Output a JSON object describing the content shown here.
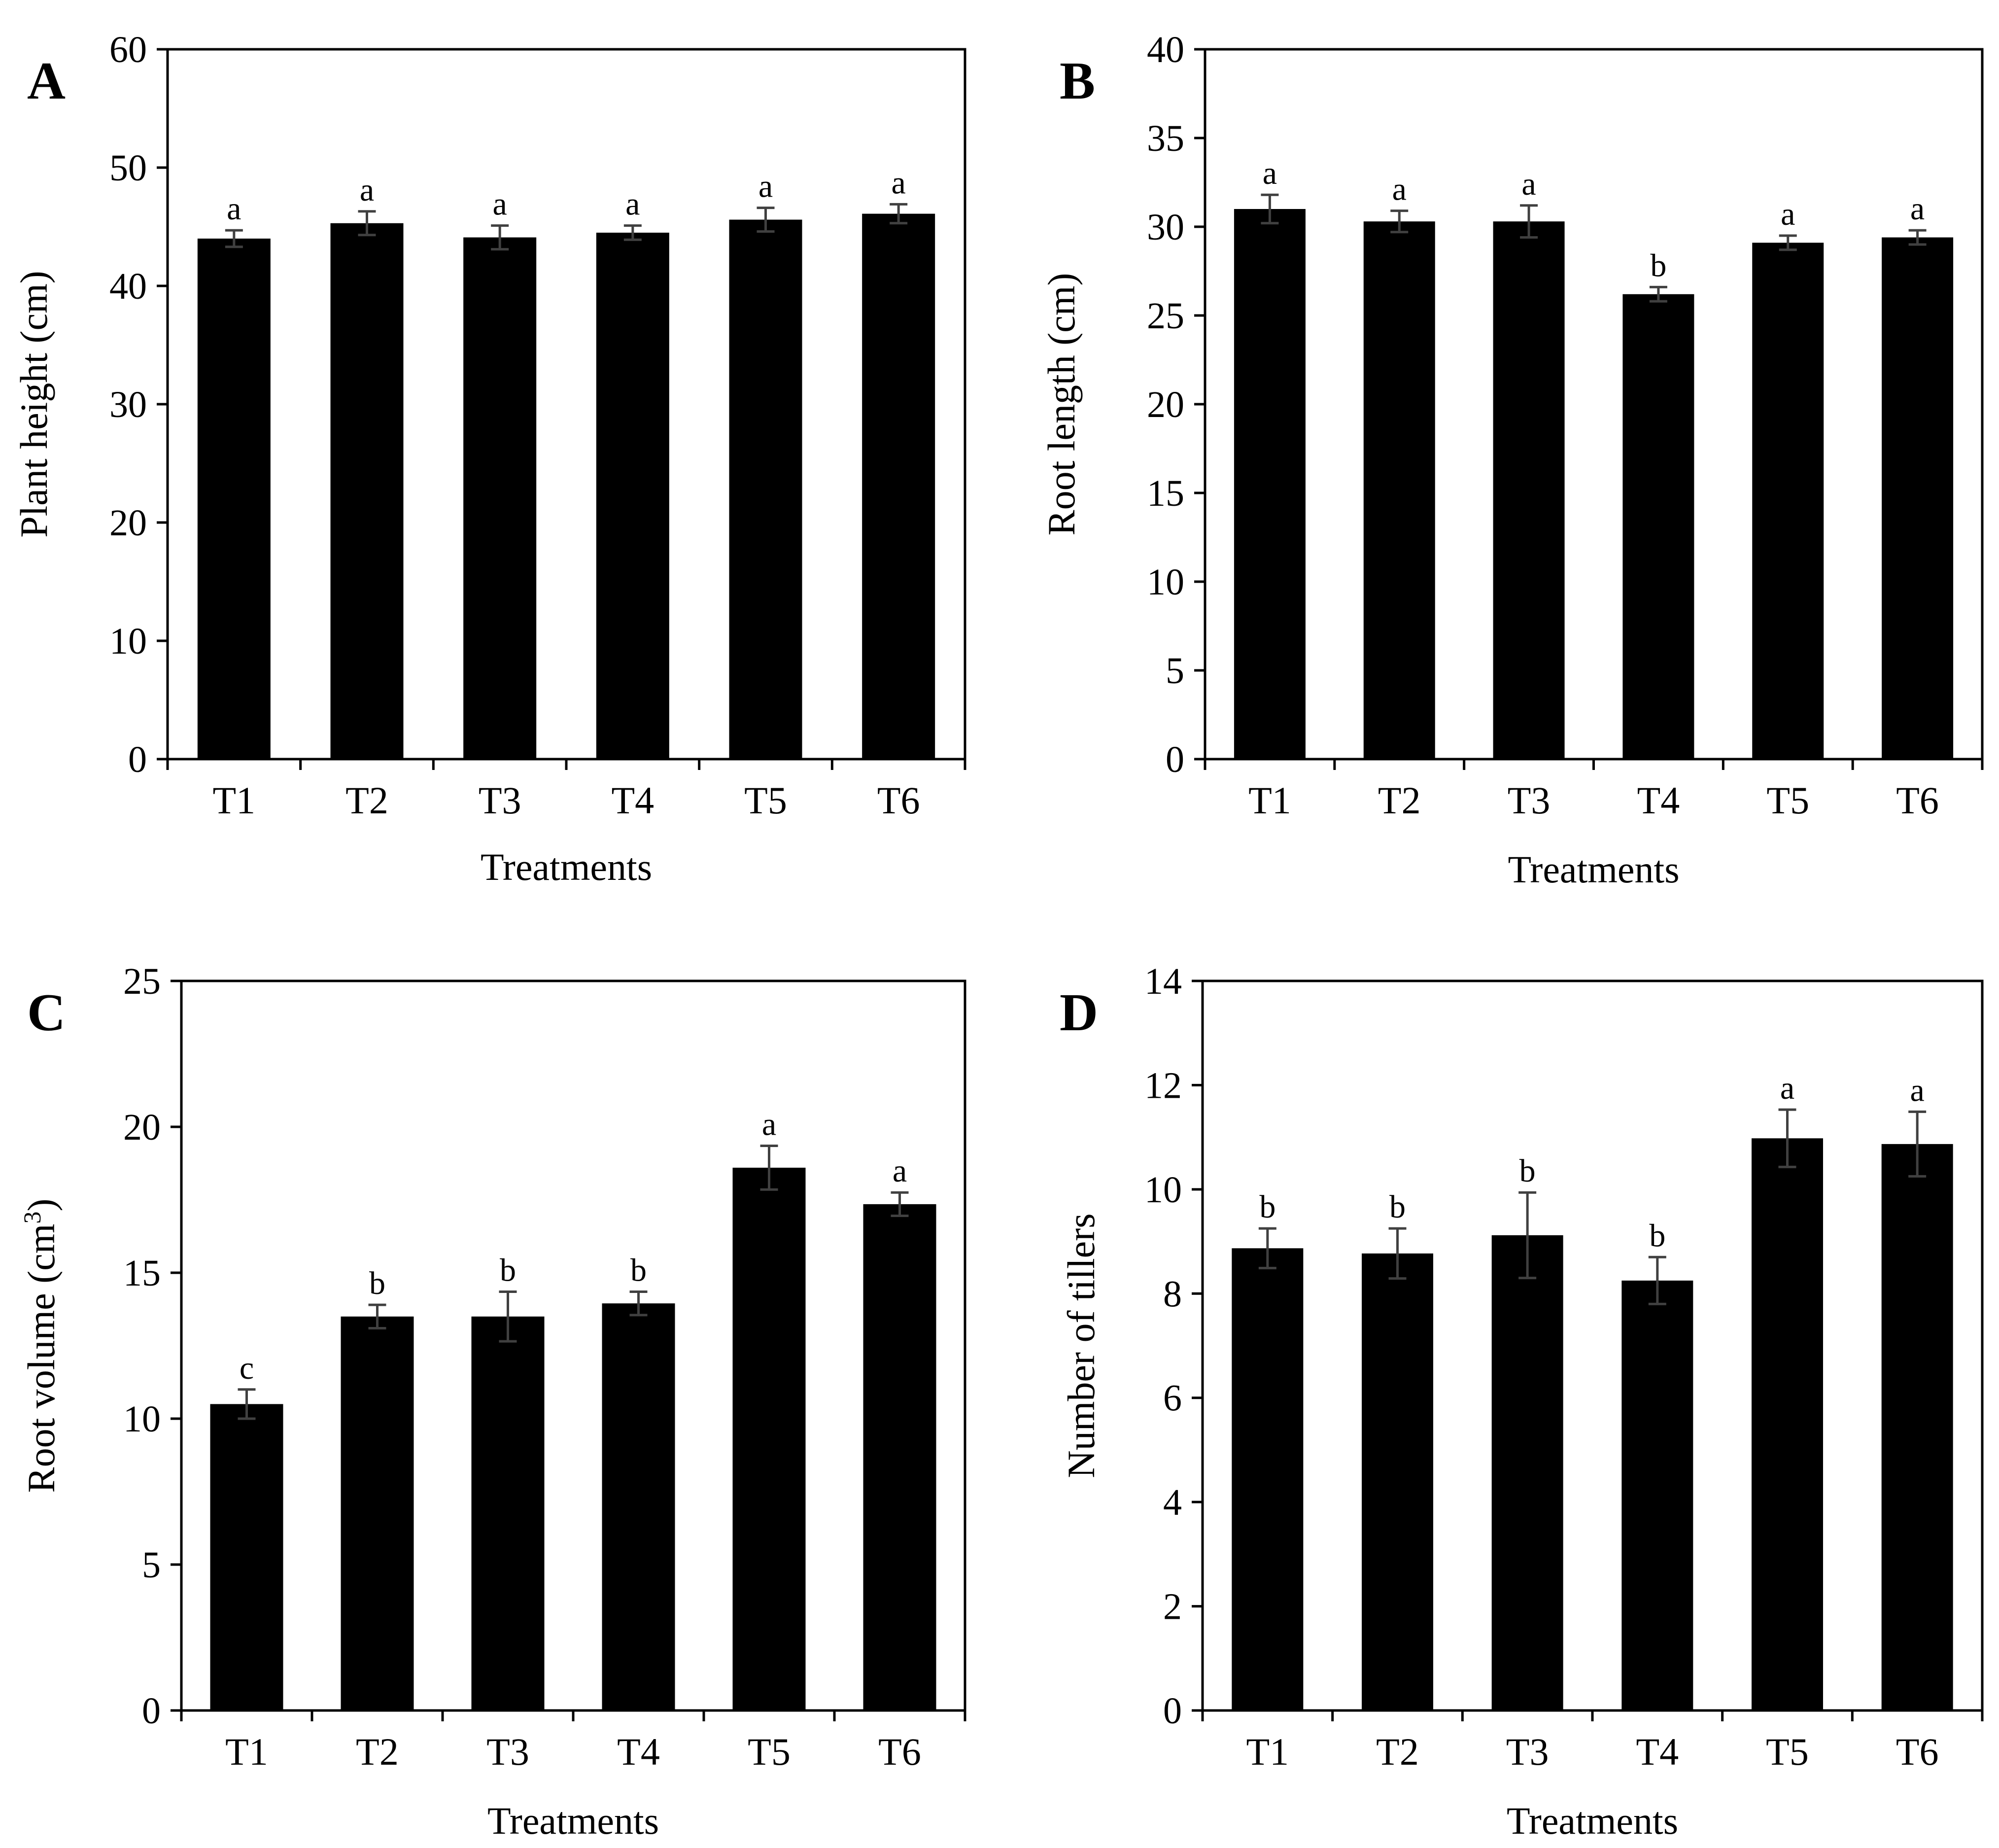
{
  "figure": {
    "background": "#ffffff",
    "bar_color": "#000000",
    "axis_color": "#000000",
    "error_color": "#404040"
  },
  "chart_data": [
    {
      "panel": "A",
      "type": "bar",
      "title": "",
      "xlabel": "Treatments",
      "ylabel": "Plant height (cm)",
      "ylabel_sup": "",
      "ylabel_tail": "",
      "categories": [
        "T1",
        "T2",
        "T3",
        "T4",
        "T5",
        "T6"
      ],
      "values": [
        44.0,
        45.3,
        44.1,
        44.5,
        45.6,
        46.1
      ],
      "errors": [
        0.7,
        1.0,
        1.0,
        0.6,
        1.0,
        0.8
      ],
      "letters": [
        "a",
        "a",
        "a",
        "a",
        "a",
        "a"
      ],
      "ylim": [
        0,
        60
      ],
      "yticks": [
        0,
        10,
        20,
        30,
        40,
        50,
        60
      ],
      "legend": "none",
      "grid": false
    },
    {
      "panel": "B",
      "type": "bar",
      "title": "",
      "xlabel": "Treatments",
      "ylabel": "Root length (cm)",
      "ylabel_sup": "",
      "ylabel_tail": "",
      "categories": [
        "T1",
        "T2",
        "T3",
        "T4",
        "T5",
        "T6"
      ],
      "values": [
        31.0,
        30.3,
        30.3,
        26.2,
        29.1,
        29.4
      ],
      "errors": [
        0.8,
        0.6,
        0.9,
        0.4,
        0.4,
        0.4
      ],
      "letters": [
        "a",
        "a",
        "a",
        "b",
        "a",
        "a"
      ],
      "ylim": [
        0,
        40
      ],
      "yticks": [
        0,
        5,
        10,
        15,
        20,
        25,
        30,
        35,
        40
      ],
      "legend": "none",
      "grid": false
    },
    {
      "panel": "C",
      "type": "bar",
      "title": "",
      "xlabel": "Treatments",
      "ylabel": "Root volume (cm",
      "ylabel_sup": "3",
      "ylabel_tail": ")",
      "categories": [
        "T1",
        "T2",
        "T3",
        "T4",
        "T5",
        "T6"
      ],
      "values": [
        10.5,
        13.5,
        13.5,
        13.95,
        18.6,
        17.35
      ],
      "errors": [
        0.5,
        0.4,
        0.85,
        0.4,
        0.75,
        0.4
      ],
      "letters": [
        "c",
        "b",
        "b",
        "b",
        "a",
        "a"
      ],
      "ylim": [
        0,
        25
      ],
      "yticks": [
        0,
        5,
        10,
        15,
        20,
        25
      ],
      "legend": "none",
      "grid": false
    },
    {
      "panel": "D",
      "type": "bar",
      "title": "",
      "xlabel": "Treatments",
      "ylabel": "Number of tillers",
      "ylabel_sup": "",
      "ylabel_tail": "",
      "categories": [
        "T1",
        "T2",
        "T3",
        "T4",
        "T5",
        "T6"
      ],
      "values": [
        8.87,
        8.77,
        9.12,
        8.25,
        10.98,
        10.87
      ],
      "errors": [
        0.38,
        0.48,
        0.82,
        0.45,
        0.55,
        0.62
      ],
      "letters": [
        "b",
        "b",
        "b",
        "b",
        "a",
        "a"
      ],
      "ylim": [
        0,
        14
      ],
      "yticks": [
        0,
        2,
        4,
        6,
        8,
        10,
        12,
        14
      ],
      "legend": "none",
      "grid": false
    }
  ]
}
